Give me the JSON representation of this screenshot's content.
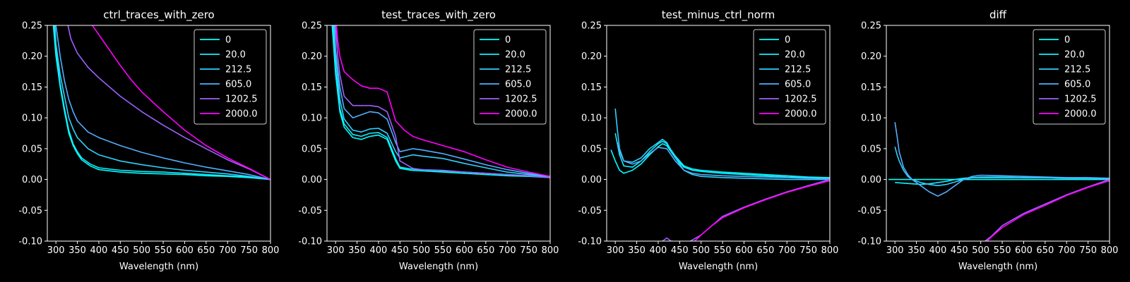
{
  "chart_data": [
    {
      "type": "line",
      "title": "ctrl_traces_with_zero",
      "xlabel": "Wavelength (nm)",
      "ylabel": "",
      "xlim": [
        280,
        800
      ],
      "ylim": [
        -0.1,
        0.25
      ],
      "xticks": [
        300,
        350,
        400,
        450,
        500,
        550,
        600,
        650,
        700,
        750,
        800
      ],
      "yticks": [
        -0.1,
        -0.05,
        0.0,
        0.05,
        0.1,
        0.15,
        0.2,
        0.25
      ],
      "legend_position": "top-right",
      "series": [
        {
          "name": "0",
          "color": "#00ffff",
          "x": [
            294,
            300,
            310,
            320,
            330,
            340,
            350,
            360,
            380,
            400,
            450,
            500,
            550,
            600,
            650,
            700,
            750,
            800
          ],
          "y": [
            0.25,
            0.2,
            0.15,
            0.11,
            0.075,
            0.055,
            0.042,
            0.032,
            0.022,
            0.016,
            0.012,
            0.01,
            0.009,
            0.008,
            0.006,
            0.005,
            0.003,
            0.0
          ]
        },
        {
          "name": "20.0",
          "color": "#10efff",
          "x": [
            296,
            300,
            310,
            320,
            330,
            340,
            350,
            360,
            380,
            400,
            450,
            500,
            550,
            600,
            650,
            700,
            750,
            800
          ],
          "y": [
            0.25,
            0.21,
            0.155,
            0.115,
            0.08,
            0.058,
            0.045,
            0.035,
            0.025,
            0.019,
            0.015,
            0.013,
            0.012,
            0.01,
            0.008,
            0.006,
            0.004,
            0.0
          ]
        },
        {
          "name": "212.5",
          "color": "#2fd0ff",
          "x": [
            298,
            300,
            310,
            320,
            330,
            340,
            350,
            375,
            400,
            450,
            500,
            550,
            600,
            650,
            700,
            750,
            800
          ],
          "y": [
            0.25,
            0.22,
            0.17,
            0.135,
            0.1,
            0.082,
            0.068,
            0.05,
            0.04,
            0.03,
            0.024,
            0.019,
            0.015,
            0.012,
            0.009,
            0.005,
            0.0
          ]
        },
        {
          "name": "605.0",
          "color": "#50afff",
          "x": [
            300,
            310,
            320,
            330,
            340,
            350,
            375,
            400,
            450,
            500,
            550,
            600,
            650,
            700,
            750,
            800
          ],
          "y": [
            0.25,
            0.2,
            0.16,
            0.13,
            0.11,
            0.095,
            0.077,
            0.068,
            0.055,
            0.044,
            0.035,
            0.027,
            0.02,
            0.014,
            0.008,
            0.0
          ]
        },
        {
          "name": "1202.5",
          "color": "#9f60ff",
          "x": [
            328,
            335,
            340,
            350,
            375,
            400,
            450,
            500,
            550,
            600,
            650,
            700,
            750,
            800
          ],
          "y": [
            0.25,
            0.228,
            0.22,
            0.205,
            0.182,
            0.165,
            0.135,
            0.11,
            0.088,
            0.068,
            0.05,
            0.032,
            0.017,
            0.0
          ]
        },
        {
          "name": "2000.0",
          "color": "#ff00ff",
          "x": [
            385,
            400,
            425,
            450,
            475,
            500,
            550,
            600,
            650,
            700,
            750,
            800
          ],
          "y": [
            0.25,
            0.235,
            0.21,
            0.185,
            0.162,
            0.142,
            0.11,
            0.08,
            0.055,
            0.035,
            0.018,
            0.0
          ]
        }
      ]
    },
    {
      "type": "line",
      "title": "test_traces_with_zero",
      "xlabel": "Wavelength (nm)",
      "ylabel": "",
      "xlim": [
        280,
        800
      ],
      "ylim": [
        -0.1,
        0.25
      ],
      "xticks": [
        300,
        350,
        400,
        450,
        500,
        550,
        600,
        650,
        700,
        750,
        800
      ],
      "yticks": [
        -0.1,
        -0.05,
        0.0,
        0.05,
        0.1,
        0.15,
        0.2,
        0.25
      ],
      "legend_position": "top-right",
      "series": [
        {
          "name": "0",
          "color": "#00ffff",
          "x": [
            292,
            300,
            310,
            320,
            340,
            360,
            380,
            400,
            420,
            440,
            450,
            475,
            500,
            550,
            600,
            650,
            700,
            750,
            800
          ],
          "y": [
            0.25,
            0.17,
            0.11,
            0.085,
            0.068,
            0.065,
            0.07,
            0.072,
            0.065,
            0.03,
            0.018,
            0.015,
            0.014,
            0.012,
            0.01,
            0.008,
            0.006,
            0.005,
            0.003
          ]
        },
        {
          "name": "20.0",
          "color": "#10efff",
          "x": [
            294,
            300,
            310,
            320,
            340,
            360,
            380,
            400,
            420,
            440,
            450,
            475,
            500,
            550,
            600,
            650,
            700,
            750,
            800
          ],
          "y": [
            0.25,
            0.18,
            0.115,
            0.09,
            0.073,
            0.07,
            0.075,
            0.076,
            0.068,
            0.034,
            0.02,
            0.017,
            0.016,
            0.014,
            0.012,
            0.01,
            0.008,
            0.006,
            0.004
          ]
        },
        {
          "name": "212.5",
          "color": "#2fd0ff",
          "x": [
            296,
            300,
            310,
            320,
            340,
            360,
            380,
            400,
            420,
            440,
            450,
            480,
            500,
            550,
            600,
            650,
            700,
            750,
            800
          ],
          "y": [
            0.25,
            0.2,
            0.13,
            0.098,
            0.08,
            0.077,
            0.082,
            0.083,
            0.075,
            0.045,
            0.035,
            0.04,
            0.038,
            0.034,
            0.026,
            0.019,
            0.012,
            0.008,
            0.004
          ]
        },
        {
          "name": "605.0",
          "color": "#50afff",
          "x": [
            298,
            300,
            310,
            320,
            340,
            360,
            380,
            400,
            420,
            440,
            450,
            480,
            500,
            550,
            600,
            650,
            700,
            750,
            800
          ],
          "y": [
            0.25,
            0.21,
            0.15,
            0.115,
            0.1,
            0.105,
            0.11,
            0.108,
            0.098,
            0.06,
            0.045,
            0.05,
            0.048,
            0.042,
            0.033,
            0.024,
            0.016,
            0.01,
            0.005
          ]
        },
        {
          "name": "1202.5",
          "color": "#9f60ff",
          "x": [
            300,
            305,
            310,
            320,
            340,
            360,
            380,
            400,
            420,
            440,
            450,
            480,
            500,
            550,
            600,
            650,
            700,
            750,
            800
          ],
          "y": [
            0.25,
            0.2,
            0.17,
            0.135,
            0.12,
            0.12,
            0.12,
            0.118,
            0.11,
            0.07,
            0.03,
            0.018,
            0.016,
            0.015,
            0.012,
            0.01,
            0.008,
            0.006,
            0.003
          ]
        },
        {
          "name": "2000.0",
          "color": "#ff00ff",
          "x": [
            302,
            305,
            310,
            320,
            340,
            360,
            380,
            400,
            420,
            440,
            460,
            480,
            500,
            550,
            600,
            650,
            700,
            750,
            800
          ],
          "y": [
            0.25,
            0.225,
            0.2,
            0.175,
            0.162,
            0.152,
            0.148,
            0.148,
            0.142,
            0.095,
            0.08,
            0.07,
            0.065,
            0.055,
            0.045,
            0.032,
            0.02,
            0.012,
            0.005
          ]
        }
      ]
    },
    {
      "type": "line",
      "title": "test_minus_ctrl_norm",
      "xlabel": "Wavelength (nm)",
      "ylabel": "",
      "xlim": [
        280,
        800
      ],
      "ylim": [
        -0.1,
        0.25
      ],
      "xticks": [
        300,
        350,
        400,
        450,
        500,
        550,
        600,
        650,
        700,
        750,
        800
      ],
      "yticks": [
        -0.1,
        -0.05,
        0.0,
        0.05,
        0.1,
        0.15,
        0.2,
        0.25
      ],
      "legend_position": "top-right",
      "series": [
        {
          "name": "0",
          "color": "#00ffff",
          "x": [
            290,
            300,
            310,
            320,
            340,
            360,
            380,
            400,
            410,
            420,
            440,
            460,
            480,
            500,
            550,
            600,
            650,
            700,
            750,
            800
          ],
          "y": [
            0.048,
            0.03,
            0.015,
            0.01,
            0.015,
            0.025,
            0.04,
            0.053,
            0.058,
            0.055,
            0.035,
            0.02,
            0.015,
            0.013,
            0.01,
            0.008,
            0.006,
            0.004,
            0.003,
            0.002
          ]
        },
        {
          "name": "20.0",
          "color": "#10efff",
          "x": [
            300,
            310,
            320,
            340,
            360,
            380,
            400,
            410,
            420,
            440,
            460,
            480,
            500,
            550,
            600,
            650,
            700,
            750,
            800
          ],
          "y": [
            0.075,
            0.04,
            0.022,
            0.02,
            0.03,
            0.045,
            0.058,
            0.062,
            0.058,
            0.038,
            0.022,
            0.017,
            0.015,
            0.012,
            0.01,
            0.008,
            0.006,
            0.004,
            0.003
          ]
        },
        {
          "name": "212.5",
          "color": "#2fd0ff",
          "x": [
            300,
            305,
            310,
            320,
            340,
            360,
            380,
            400,
            410,
            420,
            440,
            460,
            480,
            500,
            550,
            600,
            650,
            700,
            750,
            800
          ],
          "y": [
            0.115,
            0.08,
            0.05,
            0.03,
            0.028,
            0.035,
            0.05,
            0.06,
            0.065,
            0.06,
            0.035,
            0.015,
            0.008,
            0.005,
            0.003,
            0.002,
            0.001,
            0.0,
            0.0,
            0.0
          ]
        },
        {
          "name": "605.0",
          "color": "#50afff",
          "x": [
            305,
            310,
            320,
            340,
            360,
            380,
            400,
            420,
            440,
            460,
            480,
            500,
            550,
            600,
            650,
            700,
            750,
            800
          ],
          "y": [
            0.06,
            0.045,
            0.03,
            0.025,
            0.03,
            0.042,
            0.052,
            0.05,
            0.03,
            0.015,
            0.01,
            0.008,
            0.006,
            0.005,
            0.004,
            0.003,
            0.002,
            0.001
          ]
        },
        {
          "name": "1202.5",
          "color": "#9f60ff",
          "x": [
            410,
            420,
            430,
            470,
            500,
            525,
            550,
            600,
            650,
            700,
            750,
            800
          ],
          "y": [
            -0.1,
            -0.095,
            -0.1,
            -0.102,
            -0.09,
            -0.075,
            -0.06,
            -0.045,
            -0.032,
            -0.02,
            -0.01,
            0.0
          ]
        },
        {
          "name": "2000.0",
          "color": "#ff00ff",
          "x": [
            485,
            500,
            525,
            550,
            600,
            650,
            700,
            750,
            800
          ],
          "y": [
            -0.1,
            -0.09,
            -0.075,
            -0.062,
            -0.046,
            -0.033,
            -0.021,
            -0.011,
            -0.002
          ]
        }
      ]
    },
    {
      "type": "line",
      "title": "diff",
      "xlabel": "Wavelength (nm)",
      "ylabel": "",
      "xlim": [
        280,
        800
      ],
      "ylim": [
        -0.1,
        0.25
      ],
      "xticks": [
        300,
        350,
        400,
        450,
        500,
        550,
        600,
        650,
        700,
        750,
        800
      ],
      "yticks": [
        -0.1,
        -0.05,
        0.0,
        0.05,
        0.1,
        0.15,
        0.2,
        0.25
      ],
      "legend_position": "top-right",
      "series": [
        {
          "name": "0",
          "color": "#00ffff",
          "x": [
            285,
            400,
            500,
            600,
            700,
            800
          ],
          "y": [
            0.0,
            0.0,
            0.0,
            0.0,
            0.0,
            0.0
          ]
        },
        {
          "name": "20.0",
          "color": "#10efff",
          "x": [
            300,
            320,
            340,
            360,
            380,
            400,
            420,
            440,
            460,
            480,
            500,
            550,
            600,
            650,
            700,
            750,
            800
          ],
          "y": [
            -0.005,
            -0.006,
            -0.007,
            -0.008,
            -0.007,
            -0.005,
            -0.003,
            0.0,
            0.002,
            0.003,
            0.003,
            0.003,
            0.003,
            0.003,
            0.002,
            0.002,
            0.001
          ]
        },
        {
          "name": "212.5",
          "color": "#2fd0ff",
          "x": [
            300,
            305,
            310,
            320,
            330,
            340,
            360,
            380,
            400,
            420,
            440,
            460,
            480,
            500,
            550,
            600,
            650,
            700,
            750,
            800
          ],
          "y": [
            0.053,
            0.04,
            0.03,
            0.015,
            0.005,
            0.0,
            -0.005,
            -0.008,
            -0.01,
            -0.008,
            -0.004,
            0.0,
            0.003,
            0.004,
            0.004,
            0.003,
            0.003,
            0.002,
            0.002,
            0.001
          ]
        },
        {
          "name": "605.0",
          "color": "#50afff",
          "x": [
            300,
            305,
            310,
            320,
            330,
            340,
            360,
            380,
            400,
            420,
            440,
            460,
            480,
            500,
            550,
            600,
            650,
            700,
            750,
            800
          ],
          "y": [
            0.093,
            0.07,
            0.045,
            0.02,
            0.008,
            0.0,
            -0.01,
            -0.02,
            -0.027,
            -0.02,
            -0.01,
            0.0,
            0.005,
            0.007,
            0.006,
            0.005,
            0.004,
            0.003,
            0.003,
            0.002
          ]
        },
        {
          "name": "1202.5",
          "color": "#9f60ff",
          "x": [
            510,
            525,
            550,
            600,
            650,
            700,
            750,
            800
          ],
          "y": [
            -0.1,
            -0.092,
            -0.075,
            -0.055,
            -0.04,
            -0.025,
            -0.012,
            0.0
          ]
        },
        {
          "name": "2000.0",
          "color": "#ff00ff",
          "x": [
            515,
            525,
            550,
            600,
            650,
            700,
            750,
            800
          ],
          "y": [
            -0.1,
            -0.093,
            -0.078,
            -0.057,
            -0.042,
            -0.026,
            -0.013,
            -0.002
          ]
        }
      ]
    }
  ]
}
